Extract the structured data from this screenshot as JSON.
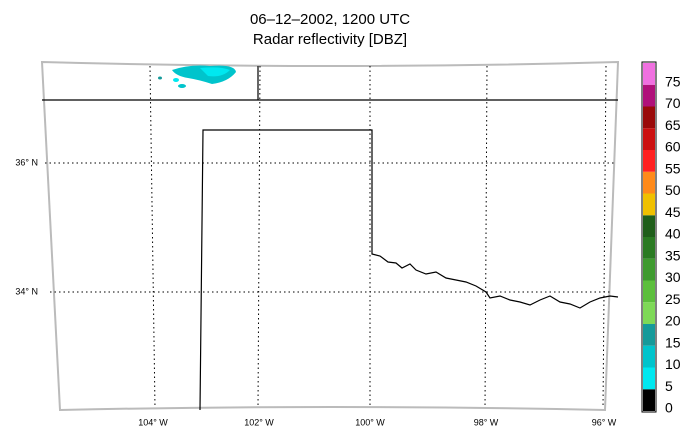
{
  "title": "06–12–2002, 1200 UTC",
  "subtitle": "Radar reflectivity [DBZ]",
  "latitude_labels": [
    "36° N",
    "34° N"
  ],
  "longitude_labels": [
    "104° W",
    "102° W",
    "100° W",
    "98° W",
    "96° W"
  ],
  "colorbar": {
    "labels": [
      "0",
      "5",
      "10",
      "15",
      "20",
      "25",
      "30",
      "35",
      "40",
      "45",
      "50",
      "55",
      "60",
      "65",
      "70",
      "75"
    ],
    "colors": [
      "#000000",
      "#00e8f0",
      "#00c4cc",
      "#159a9a",
      "#7ed957",
      "#5cbf3c",
      "#3e9a2e",
      "#2a7a22",
      "#1f5e1a",
      "#f0c000",
      "#ff8a1a",
      "#ff2020",
      "#cc1010",
      "#9a0a0a",
      "#b0107a",
      "#f070e0"
    ]
  }
}
